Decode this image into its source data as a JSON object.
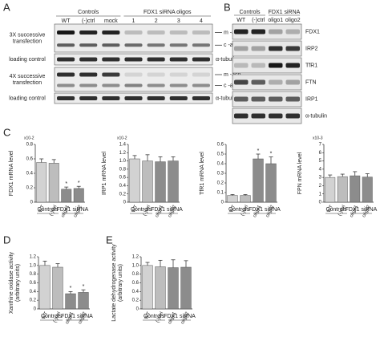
{
  "panel_a": {
    "label": "A",
    "groups": [
      "Controls",
      "FDX1 siRNA oligos"
    ],
    "lanes": [
      "WT",
      "(-)ctrl",
      "mock",
      "1",
      "2",
      "3",
      "4"
    ],
    "blots": [
      {
        "left": [
          "3X successive",
          "transfection"
        ],
        "right": [
          "m -aco",
          "c -aco"
        ]
      },
      {
        "left": [
          "loading control"
        ],
        "right": [
          "α-tubulin"
        ]
      },
      {
        "left": [
          "4X successive",
          "transfection"
        ],
        "right": [
          "m -aco",
          "c -aco"
        ]
      },
      {
        "left": [
          "loading control"
        ],
        "right": [
          "α-tubulin"
        ]
      }
    ]
  },
  "panel_b": {
    "label": "B",
    "groups": [
      "Controls",
      "FDX1 siRNA"
    ],
    "lanes": [
      "WT",
      "(-)ctrl",
      "oligo1",
      "oligo2"
    ],
    "blots": [
      "FDX1",
      "IRP2",
      "TfR1",
      "FTN",
      "IRP1",
      "α-tubulin"
    ]
  },
  "chart_data": [
    {
      "type": "bar",
      "panel_label": "C",
      "ylabel": "FDX1 mRNA level",
      "y_multiplier": "x10-2",
      "categories": [
        "WT",
        "(-)ctrl",
        "oligo1",
        "oligo2"
      ],
      "group_labels": [
        "Controls",
        "FDX1 siRNA"
      ],
      "values": [
        0.55,
        0.54,
        0.18,
        0.19
      ],
      "errors": [
        0.05,
        0.05,
        0.03,
        0.03
      ],
      "significance": [
        null,
        null,
        "*",
        "*"
      ],
      "colors": [
        "#d2d2d2",
        "#bdbdbd",
        "#8c8c8c",
        "#8c8c8c"
      ],
      "ylim": [
        0,
        0.8
      ],
      "yticks": [
        0,
        0.2,
        0.4,
        0.6,
        0.8
      ]
    },
    {
      "type": "bar",
      "ylabel": "IRP1 mRNA level",
      "y_multiplier": "x10-2",
      "categories": [
        "WT",
        "(-)ctrl",
        "oligo1",
        "oligo2"
      ],
      "group_labels": [
        "Controls",
        "FDX1 siRNA"
      ],
      "values": [
        1.05,
        1.0,
        0.98,
        1.0
      ],
      "errors": [
        0.08,
        0.15,
        0.12,
        0.1
      ],
      "significance": [
        null,
        null,
        null,
        null
      ],
      "colors": [
        "#d2d2d2",
        "#bdbdbd",
        "#8c8c8c",
        "#8c8c8c"
      ],
      "ylim": [
        0,
        1.4
      ],
      "yticks": [
        0,
        0.2,
        0.4,
        0.6,
        0.8,
        {
          "value": 1,
          "label": "1.0"
        },
        1.2,
        1.4
      ]
    },
    {
      "type": "bar",
      "ylabel": "TfR1 mRNA level",
      "categories": [
        "WT",
        "(-)ctrl",
        "oligo1",
        "oligo2"
      ],
      "group_labels": [
        "Controls",
        "FDX1 siRNA"
      ],
      "values": [
        0.07,
        0.07,
        0.45,
        0.4
      ],
      "errors": [
        0.01,
        0.01,
        0.05,
        0.07
      ],
      "significance": [
        null,
        null,
        "*",
        "*"
      ],
      "colors": [
        "#d2d2d2",
        "#bdbdbd",
        "#8c8c8c",
        "#8c8c8c"
      ],
      "ylim": [
        0,
        0.6
      ],
      "yticks": [
        0,
        0.1,
        0.2,
        0.3,
        0.4,
        0.5,
        0.6
      ]
    },
    {
      "type": "bar",
      "ylabel": "FPN mRNA level",
      "y_multiplier": "x10-3",
      "categories": [
        "WT",
        "(-)ctrl",
        "oligo1",
        "oligo2"
      ],
      "group_labels": [
        "Controls",
        "FDX1 siRNA"
      ],
      "values": [
        3.0,
        3.1,
        3.2,
        3.05
      ],
      "errors": [
        0.3,
        0.3,
        0.5,
        0.4
      ],
      "significance": [
        null,
        null,
        null,
        null
      ],
      "colors": [
        "#d2d2d2",
        "#bdbdbd",
        "#8c8c8c",
        "#8c8c8c"
      ],
      "ylim": [
        0,
        7
      ],
      "yticks": [
        0,
        1,
        2,
        3,
        4,
        5,
        6,
        7
      ]
    },
    {
      "type": "bar",
      "panel_label": "D",
      "ylabel": [
        "Xanthine oxidase activity",
        "(arbitrary units)"
      ],
      "categories": [
        "WT",
        "(-)ctrl",
        "oligo1",
        "oligo2"
      ],
      "group_labels": [
        "Controls",
        "FDX1 siRNA"
      ],
      "values": [
        1.0,
        0.96,
        0.35,
        0.38
      ],
      "errors": [
        0.1,
        0.08,
        0.05,
        0.06
      ],
      "significance": [
        null,
        null,
        "*",
        "*"
      ],
      "colors": [
        "#d2d2d2",
        "#bdbdbd",
        "#8c8c8c",
        "#8c8c8c"
      ],
      "ylim": [
        0,
        1.2
      ],
      "yticks": [
        0,
        0.2,
        0.4,
        0.6,
        0.8,
        {
          "value": 1,
          "label": "1.0"
        },
        1.2
      ]
    },
    {
      "type": "bar",
      "panel_label": "E",
      "ylabel": [
        "Lactate dehydrogenase activity",
        "(arbitrary units)"
      ],
      "categories": [
        "WT",
        "(-)ctrl",
        "oligo1",
        "oligo2"
      ],
      "group_labels": [
        "Controls",
        "FDX1 siRNA"
      ],
      "values": [
        1.0,
        0.97,
        0.95,
        0.96
      ],
      "errors": [
        0.07,
        0.15,
        0.18,
        0.15
      ],
      "significance": [
        null,
        null,
        null,
        null
      ],
      "colors": [
        "#d2d2d2",
        "#bdbdbd",
        "#8c8c8c",
        "#8c8c8c"
      ],
      "ylim": [
        0,
        1.2
      ],
      "yticks": [
        0,
        0.2,
        0.4,
        0.6,
        0.8,
        {
          "value": 1,
          "label": "1.0"
        },
        1.2
      ]
    }
  ]
}
